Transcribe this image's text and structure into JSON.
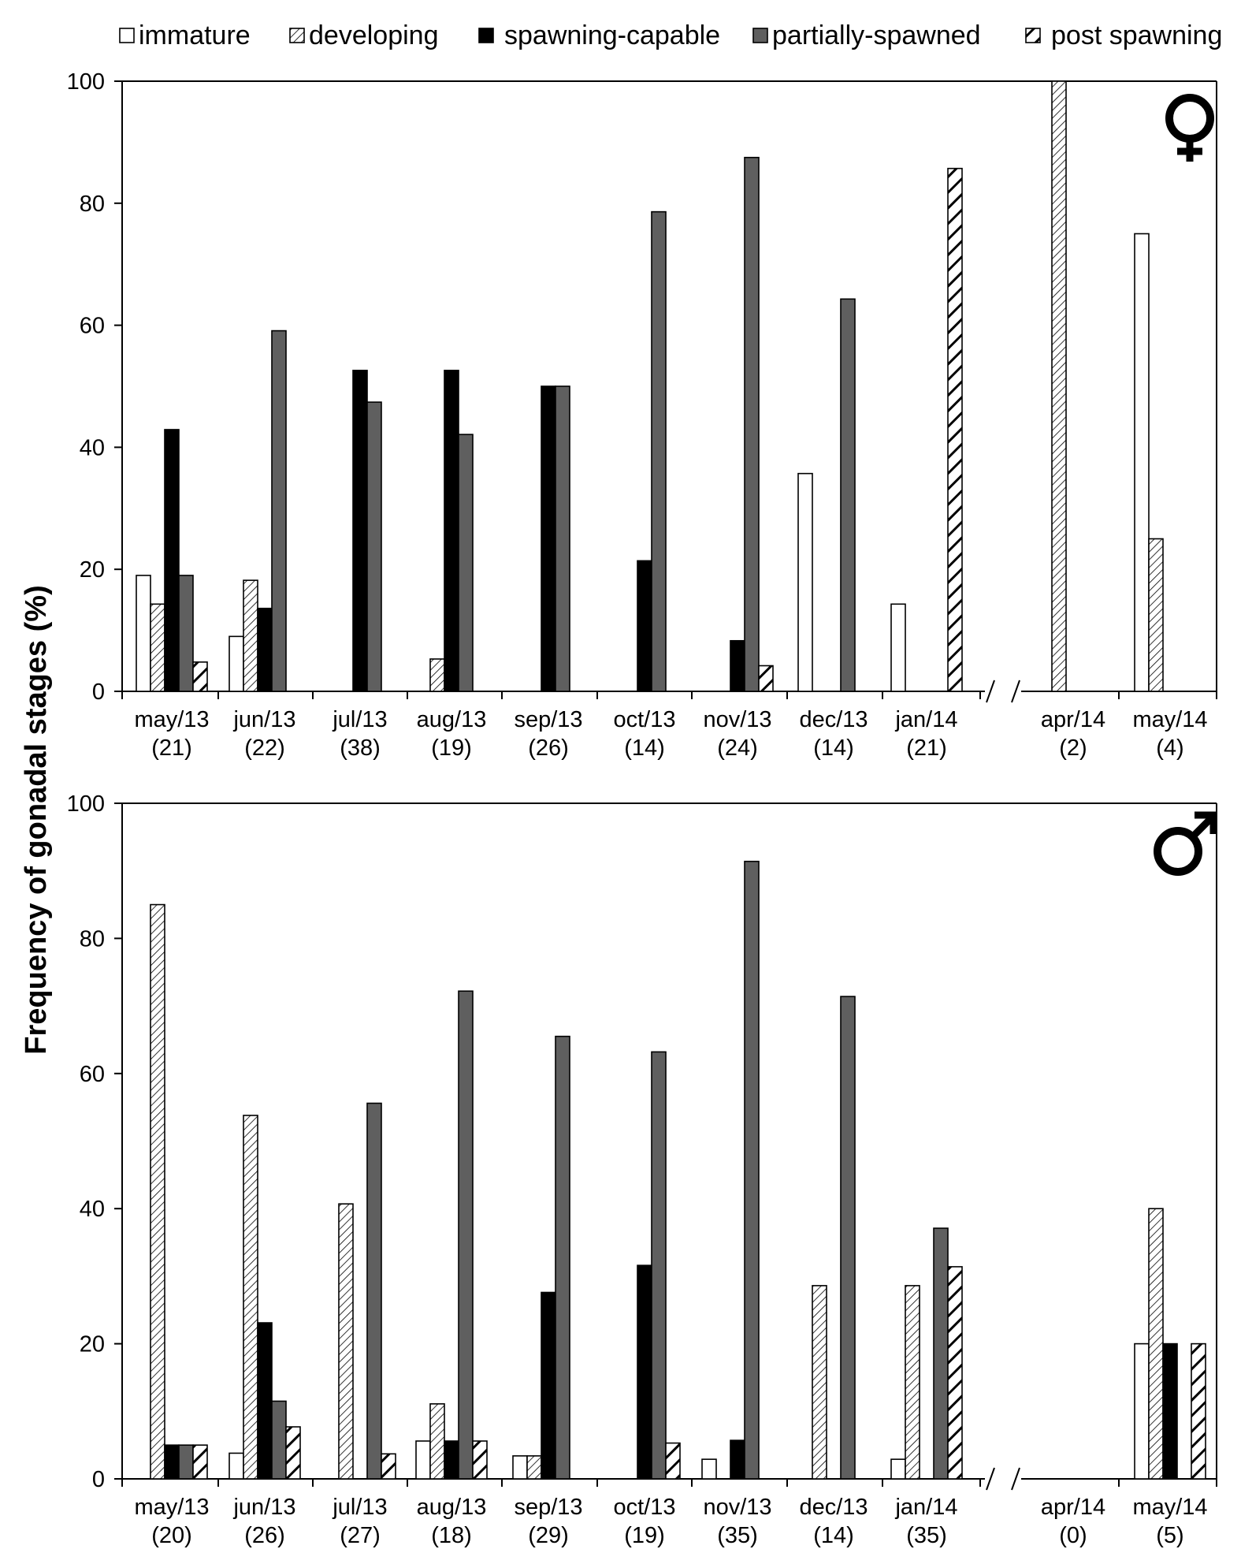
{
  "legend": [
    {
      "name": "immature",
      "style": "white"
    },
    {
      "name": "developing",
      "style": "diag-light"
    },
    {
      "name": "spawning-capable",
      "style": "black"
    },
    {
      "name": "partially-spawned",
      "style": "dark-gray"
    },
    {
      "name": "post spawning",
      "style": "diag-bold"
    }
  ],
  "colors": {
    "white": "#ffffff",
    "black": "#000000",
    "dark_gray": "#5f5f5f",
    "edge": "#000000"
  },
  "ylabel": "Frequency of gonadal stages (%)",
  "chart_data": [
    {
      "type": "bar",
      "symbol": "♀",
      "symbol_icon": "female-symbol-icon",
      "categories": [
        "may/13",
        "jun/13",
        "jul/13",
        "aug/13",
        "sep/13",
        "oct/13",
        "nov/13",
        "dec/13",
        "jan/14",
        "apr/14",
        "may/14"
      ],
      "sample_sizes": [
        "(21)",
        "(22)",
        "(38)",
        "(19)",
        "(26)",
        "(14)",
        "(24)",
        "(14)",
        "(21)",
        "(2)",
        "(4)"
      ],
      "ylim": [
        0,
        100
      ],
      "yticks": [
        0,
        20,
        40,
        60,
        80,
        100
      ],
      "axis_break_after": "jan/14",
      "series": [
        {
          "name": "immature",
          "values": [
            19,
            9,
            0,
            0,
            0,
            0,
            0,
            35.7,
            14.3,
            0,
            75
          ]
        },
        {
          "name": "developing",
          "values": [
            14.3,
            18.2,
            0,
            5.3,
            0,
            0,
            0,
            0,
            0,
            100,
            25
          ]
        },
        {
          "name": "spawning-capable",
          "values": [
            42.9,
            13.6,
            52.6,
            52.6,
            50,
            21.4,
            8.3,
            0,
            0,
            0,
            0
          ]
        },
        {
          "name": "partially-spawned",
          "values": [
            19,
            59.1,
            47.4,
            42.1,
            50,
            78.6,
            87.5,
            64.3,
            0,
            0,
            0
          ]
        },
        {
          "name": "post spawning",
          "values": [
            4.8,
            0,
            0,
            0,
            0,
            0,
            4.2,
            0,
            85.7,
            0,
            0
          ]
        }
      ]
    },
    {
      "type": "bar",
      "symbol": "♂",
      "symbol_icon": "male-symbol-icon",
      "categories": [
        "may/13",
        "jun/13",
        "jul/13",
        "aug/13",
        "sep/13",
        "oct/13",
        "nov/13",
        "dec/13",
        "jan/14",
        "apr/14",
        "may/14"
      ],
      "sample_sizes": [
        "(20)",
        "(26)",
        "(27)",
        "(18)",
        "(29)",
        "(19)",
        "(35)",
        "(14)",
        "(35)",
        "(0)",
        "(5)"
      ],
      "ylim": [
        0,
        100
      ],
      "yticks": [
        0,
        20,
        40,
        60,
        80,
        100
      ],
      "axis_break_after": "jan/14",
      "series": [
        {
          "name": "immature",
          "values": [
            0,
            3.8,
            0,
            5.6,
            3.4,
            0,
            2.9,
            0,
            2.9,
            0,
            20
          ]
        },
        {
          "name": "developing",
          "values": [
            85,
            53.8,
            40.7,
            11.1,
            3.4,
            0,
            0,
            28.6,
            28.6,
            0,
            40
          ]
        },
        {
          "name": "spawning-capable",
          "values": [
            5,
            23.1,
            0,
            5.6,
            27.6,
            31.6,
            5.7,
            0,
            0,
            0,
            20
          ]
        },
        {
          "name": "partially-spawned",
          "values": [
            5,
            11.5,
            55.6,
            72.2,
            65.5,
            63.2,
            91.4,
            71.4,
            37.1,
            0,
            0
          ]
        },
        {
          "name": "post spawning",
          "values": [
            5,
            7.7,
            3.7,
            5.6,
            0,
            5.3,
            0,
            0,
            31.4,
            0,
            20
          ]
        }
      ]
    }
  ]
}
